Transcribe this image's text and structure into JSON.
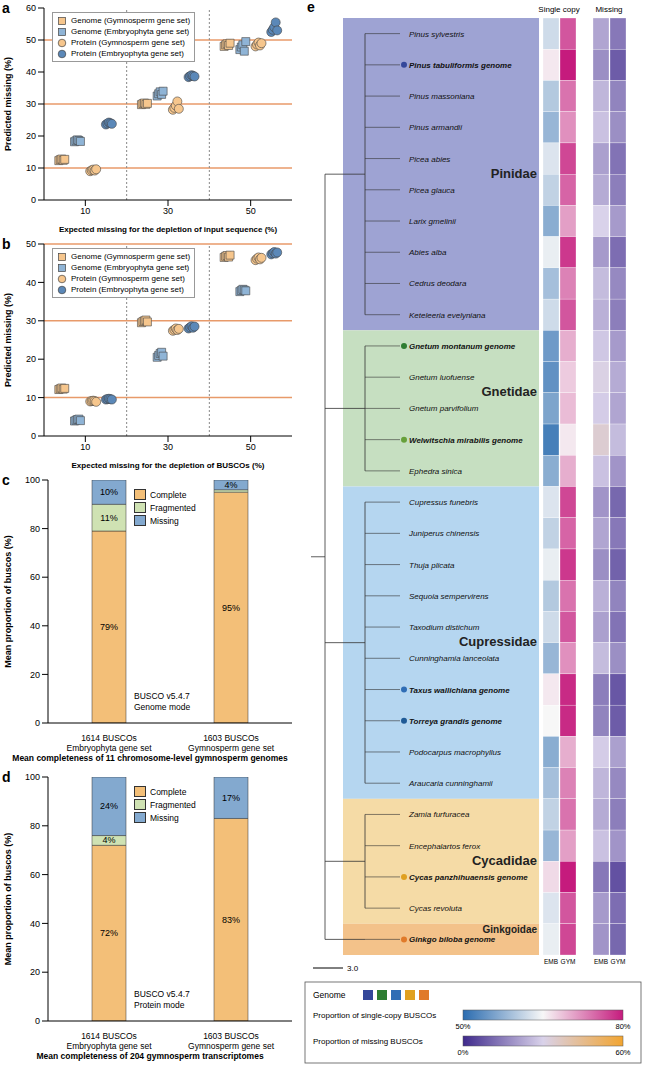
{
  "chart_data": [
    {
      "panel": "a",
      "type": "scatter",
      "x_label": "Expected missing for the depletion of input sequence (%)",
      "y_label": "Predicted missing (%)",
      "categories": [
        "10",
        "30",
        "50"
      ],
      "ylim": [
        0,
        60
      ],
      "yticks": [
        0,
        10,
        20,
        30,
        40,
        50,
        60
      ],
      "reference_lines": [
        10,
        30,
        50
      ],
      "legend": "upper left",
      "series": [
        {
          "name": "Genome (Gymnosperm gene set)",
          "color": "#f6c68d",
          "marker": "square",
          "values": [
            [
              12.3,
              12.6,
              12.8,
              12.4,
              12.7
            ],
            [
              29.8,
              30.1,
              30.3,
              29.9,
              30.2
            ],
            [
              48.0,
              48.5,
              48.8,
              48.3,
              49.0
            ]
          ]
        },
        {
          "name": "Genome (Embryophyta gene set)",
          "color": "#8fb4d6",
          "marker": "square",
          "values": [
            [
              18.2,
              18.5,
              18.8,
              18.6,
              18.3
            ],
            [
              32.5,
              33.2,
              33.8,
              33.0,
              34.0
            ],
            [
              47.0,
              47.8,
              48.5,
              46.5,
              49.5
            ]
          ]
        },
        {
          "name": "Protein (Gymnosperm gene set)",
          "color": "#f6c68d",
          "marker": "circle",
          "values": [
            [
              9.0,
              9.3,
              9.5,
              9.2,
              9.6
            ],
            [
              28.2,
              28.8,
              29.5,
              30.8,
              28.5
            ],
            [
              48.0,
              48.6,
              49.2,
              48.3,
              49.0
            ]
          ]
        },
        {
          "name": "Protein (Embryophyta gene set)",
          "color": "#5b88b8",
          "marker": "circle",
          "values": [
            [
              23.6,
              23.9,
              24.2,
              24.0,
              23.8
            ],
            [
              38.4,
              38.7,
              39.0,
              38.8,
              38.6
            ],
            [
              52.5,
              53.2,
              54.0,
              55.5,
              53.0
            ]
          ]
        }
      ]
    },
    {
      "panel": "b",
      "type": "scatter",
      "x_label": "Expected missing for the depletion of BUSCOs (%)",
      "y_label": "Predicted missing (%)",
      "categories": [
        "10",
        "30",
        "50"
      ],
      "ylim": [
        0,
        50
      ],
      "yticks": [
        0,
        10,
        20,
        30,
        40,
        50
      ],
      "reference_lines": [
        10,
        30,
        50
      ],
      "legend": "upper left",
      "series": [
        {
          "name": "Genome (Gymnosperm gene set)",
          "color": "#f6c68d",
          "marker": "square",
          "values": [
            [
              12.1,
              12.3,
              12.5,
              12.2,
              12.4
            ],
            [
              29.5,
              29.8,
              30.0,
              30.2,
              29.7
            ],
            [
              46.5,
              46.8,
              47.0,
              46.6,
              47.1
            ]
          ]
        },
        {
          "name": "Genome (Embryophyta gene set)",
          "color": "#8fb4d6",
          "marker": "square",
          "values": [
            [
              3.9,
              4.1,
              4.3,
              4.4,
              4.0
            ],
            [
              20.5,
              21.0,
              21.5,
              21.8,
              20.8
            ],
            [
              37.6,
              37.9,
              38.2,
              38.0,
              37.8
            ]
          ]
        },
        {
          "name": "Protein (Gymnosperm gene set)",
          "color": "#f6c68d",
          "marker": "circle",
          "values": [
            [
              9.0,
              9.1,
              9.2,
              9.1,
              8.9
            ],
            [
              27.4,
              27.7,
              28.0,
              27.6,
              27.9
            ],
            [
              45.8,
              46.2,
              46.5,
              46.0,
              46.4
            ]
          ]
        },
        {
          "name": "Protein (Embryophyta gene set)",
          "color": "#5b88b8",
          "marker": "circle",
          "values": [
            [
              9.5,
              9.6,
              9.7,
              9.6,
              9.5
            ],
            [
              28.0,
              28.3,
              28.6,
              28.2,
              28.5
            ],
            [
              47.3,
              47.6,
              47.9,
              47.5,
              47.8
            ]
          ]
        }
      ]
    },
    {
      "panel": "c",
      "type": "bar",
      "stacked": true,
      "data_labels": true,
      "legend": "upper left",
      "categories": [
        "1614 BUSCOs\nEmbryophyta gene set",
        "1603 BUSCOs\nGymnosperm gene set"
      ],
      "x_label": "Mean completeness of 11 chromosome-level gymnosperm genomes",
      "y_label": "Mean proportion of buscos (%)",
      "ylim": [
        0,
        100
      ],
      "yticks": [
        0,
        20,
        40,
        60,
        80,
        100
      ],
      "annotation": "BUSCO v5.4.7\nGenome mode",
      "series": [
        {
          "name": "Complete",
          "color": "#f3bf78",
          "values": [
            79,
            95
          ],
          "value_labels": [
            "79%",
            "95%"
          ]
        },
        {
          "name": "Fragmented",
          "color": "#cfe2b3",
          "values": [
            11,
            1
          ],
          "value_labels": [
            "11%",
            null
          ]
        },
        {
          "name": "Missing",
          "color": "#83a9cf",
          "values": [
            10,
            4
          ],
          "value_labels": [
            "10%",
            "4%"
          ]
        }
      ]
    },
    {
      "panel": "d",
      "type": "bar",
      "stacked": true,
      "data_labels": true,
      "legend": "upper left",
      "categories": [
        "1614 BUSCOs\nEmbryophyta gene set",
        "1603 BUSCOs\nGymnosperm gene set"
      ],
      "x_label": "Mean completeness of 204 gymnosperm transcriptomes",
      "y_label": "Mean proportion of buscos (%)",
      "ylim": [
        0,
        100
      ],
      "yticks": [
        0,
        20,
        40,
        60,
        80,
        100
      ],
      "annotation": "BUSCO v5.4.7\nProtein mode",
      "series": [
        {
          "name": "Complete",
          "color": "#f3bf78",
          "values": [
            72,
            83
          ],
          "value_labels": [
            "72%",
            "83%"
          ]
        },
        {
          "name": "Fragmented",
          "color": "#cfe2b3",
          "values": [
            4,
            0
          ],
          "value_labels": [
            "4%",
            null
          ]
        },
        {
          "name": "Missing",
          "color": "#83a9cf",
          "values": [
            24,
            17
          ],
          "value_labels": [
            "24%",
            "17%"
          ]
        }
      ]
    }
  ],
  "tree": {
    "panel": "e",
    "scale_bar": {
      "value": 3,
      "label": "3.0"
    },
    "columns": [
      "EMB",
      "GYM"
    ],
    "genome_legend": {
      "title": "Genome",
      "colors": [
        "#34479a",
        "#2e7d32",
        "#2f6db5",
        "#e0a020",
        "#e07a2a"
      ]
    },
    "heatmaps": [
      {
        "title": "Single copy",
        "legend_title": "Proportion of single-copy BUSCOs",
        "range": [
          {
            "value": 50,
            "label": "50%"
          },
          {
            "value": 80,
            "label": "80%"
          }
        ]
      },
      {
        "title": "Missing",
        "legend_title": "Proportion of missing BUSCOs",
        "range": [
          {
            "value": 0,
            "label": "0%"
          },
          {
            "value": 60,
            "label": "60%"
          }
        ]
      }
    ],
    "clades": [
      {
        "name": "Pinidae",
        "color": "#9ea3d3",
        "taxa": [
          {
            "name": "Pinus sylvestris",
            "values": [
              [
                62,
                76
              ],
              [
                22,
                14
              ]
            ]
          },
          {
            "name": "Pinus tabuliformis genome",
            "color": "#34479a",
            "values": [
              [
                66,
                80
              ],
              [
                18,
                9
              ]
            ]
          },
          {
            "name": "Pinus massoniana",
            "values": [
              [
                60,
                74
              ],
              [
                25,
                16
              ]
            ]
          },
          {
            "name": "Pinus armandii",
            "values": [
              [
                58,
                72
              ],
              [
                27,
                18
              ]
            ]
          },
          {
            "name": "Picea abies",
            "values": [
              [
                63,
                77
              ],
              [
                21,
                13
              ]
            ]
          },
          {
            "name": "Picea glauca",
            "values": [
              [
                61,
                75
              ],
              [
                23,
                15
              ]
            ]
          },
          {
            "name": "Larix gmelinii",
            "values": [
              [
                57,
                71
              ],
              [
                30,
                20
              ]
            ]
          },
          {
            "name": "Abies alba",
            "values": [
              [
                64,
                78
              ],
              [
                20,
                12
              ]
            ]
          },
          {
            "name": "Cedrus deodara",
            "values": [
              [
                59,
                73
              ],
              [
                26,
                17
              ]
            ]
          },
          {
            "name": "Keteleeria evelyniana",
            "values": [
              [
                62,
                76
              ],
              [
                24,
                15
              ]
            ]
          }
        ]
      },
      {
        "name": "Gnetidae",
        "color": "#c6dfc1",
        "taxa": [
          {
            "name": "Gnetum montanum genome",
            "color": "#2e7d32",
            "values": [
              [
                55,
                70
              ],
              [
                28,
                20
              ]
            ]
          },
          {
            "name": "Gnetum luofuense",
            "values": [
              [
                54,
                68
              ],
              [
                31,
                23
              ]
            ]
          },
          {
            "name": "Gnetum parvifolium",
            "values": [
              [
                56,
                69
              ],
              [
                29,
                22
              ]
            ]
          },
          {
            "name": "Welwitschia mirabilis genome",
            "color": "#66a03a",
            "values": [
              [
                52,
                66
              ],
              [
                34,
                26
              ]
            ]
          },
          {
            "name": "Ephedra sinica",
            "values": [
              [
                57,
                70
              ],
              [
                27,
                19
              ]
            ]
          }
        ]
      },
      {
        "name": "Cupressidae",
        "color": "#b5d6f0",
        "taxa": [
          {
            "name": "Cupressus funebris",
            "values": [
              [
                63,
                77
              ],
              [
                19,
                11
              ]
            ]
          },
          {
            "name": "Juniperus chinensis",
            "values": [
              [
                61,
                75
              ],
              [
                22,
                14
              ]
            ]
          },
          {
            "name": "Thuja plicata",
            "values": [
              [
                64,
                78
              ],
              [
                18,
                10
              ]
            ]
          },
          {
            "name": "Sequoia sempervirens",
            "values": [
              [
                60,
                74
              ],
              [
                24,
                16
              ]
            ]
          },
          {
            "name": "Taxodium distichum",
            "values": [
              [
                62,
                76
              ],
              [
                21,
                13
              ]
            ]
          },
          {
            "name": "Cunninghamia lanceolata",
            "values": [
              [
                58,
                72
              ],
              [
                26,
                18
              ]
            ]
          },
          {
            "name": "Taxus wallichiana genome",
            "color": "#2f6db5",
            "values": [
              [
                66,
                79
              ],
              [
                15,
                8
              ]
            ]
          },
          {
            "name": "Torreya grandis genome",
            "color": "#1f5a96",
            "values": [
              [
                65,
                79
              ],
              [
                16,
                9
              ]
            ]
          },
          {
            "name": "Podocarpus macrophyllus",
            "values": [
              [
                57,
                70
              ],
              [
                29,
                21
              ]
            ]
          },
          {
            "name": "Araucaria cunninghamii",
            "values": [
              [
                59,
                73
              ],
              [
                25,
                17
              ]
            ]
          }
        ]
      },
      {
        "name": "Cycadidae",
        "color": "#f5dba6",
        "taxa": [
          {
            "name": "Zamia furfuracea",
            "values": [
              [
                61,
                74
              ],
              [
                23,
                15
              ]
            ]
          },
          {
            "name": "Encephalartos ferox",
            "values": [
              [
                58,
                71
              ],
              [
                27,
                19
              ]
            ]
          },
          {
            "name": "Cycas panzhihuaensis genome",
            "color": "#e0a020",
            "values": [
              [
                67,
                80
              ],
              [
                14,
                7
              ]
            ]
          },
          {
            "name": "Cycas revoluta",
            "values": [
              [
                63,
                76
              ],
              [
                20,
                12
              ]
            ]
          }
        ]
      },
      {
        "name": "Ginkgoidae",
        "color": "#f3c28a",
        "taxa": [
          {
            "name": "Ginkgo biloba genome",
            "color": "#e07a2a",
            "values": [
              [
                64,
                77
              ],
              [
                19,
                11
              ]
            ]
          }
        ]
      }
    ]
  }
}
